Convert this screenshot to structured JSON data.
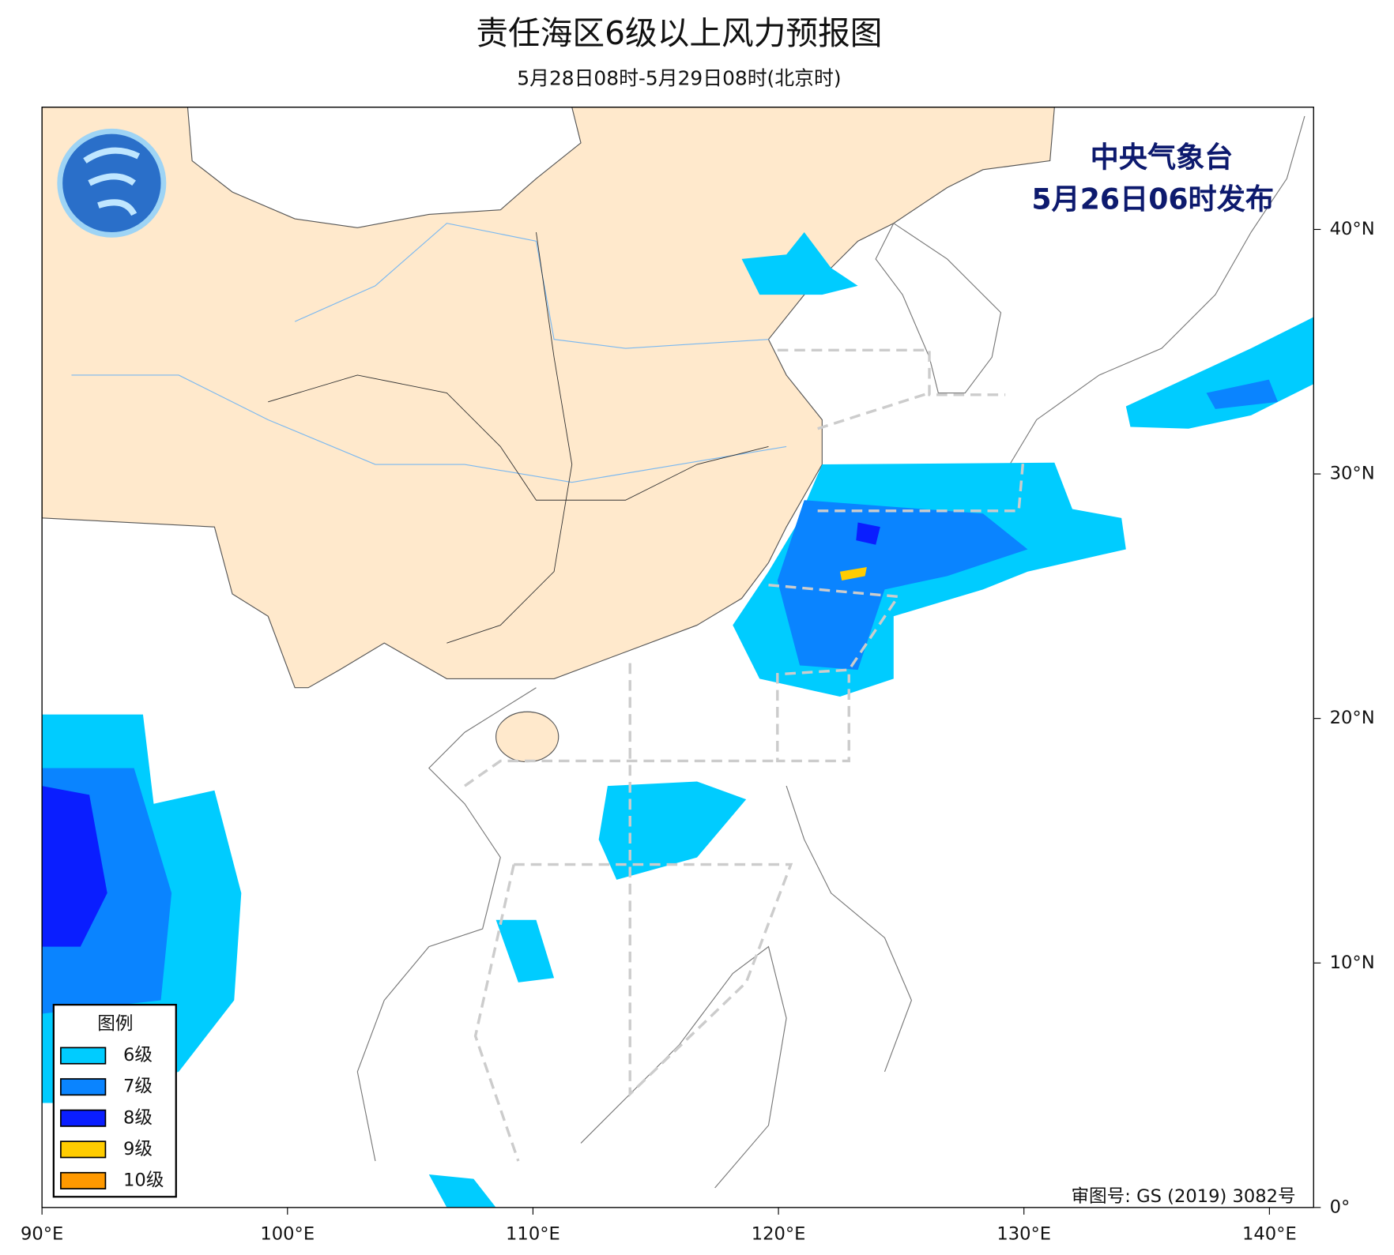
{
  "map": {
    "title": "责任海区6级以上风力预报图",
    "subtitle": "5月28日08时-5月29日08时(北京时)",
    "publisher": "中央气象台",
    "issued": "5月26日06时发布",
    "approval": "审图号: GS (2019) 3082号",
    "xlim": [
      90,
      141.8
    ],
    "ylim": [
      0,
      45
    ],
    "xticks": [
      {
        "value": 90,
        "label": "90°E"
      },
      {
        "value": 100,
        "label": "100°E"
      },
      {
        "value": 110,
        "label": "110°E"
      },
      {
        "value": 120,
        "label": "120°E"
      },
      {
        "value": 130,
        "label": "130°E"
      },
      {
        "value": 140,
        "label": "140°E"
      }
    ],
    "yticks": [
      {
        "value": 0,
        "label": "0°"
      },
      {
        "value": 10,
        "label": "10°N"
      },
      {
        "value": 20,
        "label": "20°N"
      },
      {
        "value": 30,
        "label": "30°N"
      },
      {
        "value": 40,
        "label": "40°N"
      }
    ],
    "legend": {
      "title": "图例",
      "items": [
        {
          "label": "6级",
          "color": "#00ccff"
        },
        {
          "label": "7级",
          "color": "#0a84ff"
        },
        {
          "label": "8级",
          "color": "#0a1eff"
        },
        {
          "label": "9级",
          "color": "#ffcc00"
        },
        {
          "label": "10级",
          "color": "#ff9900"
        }
      ]
    }
  }
}
